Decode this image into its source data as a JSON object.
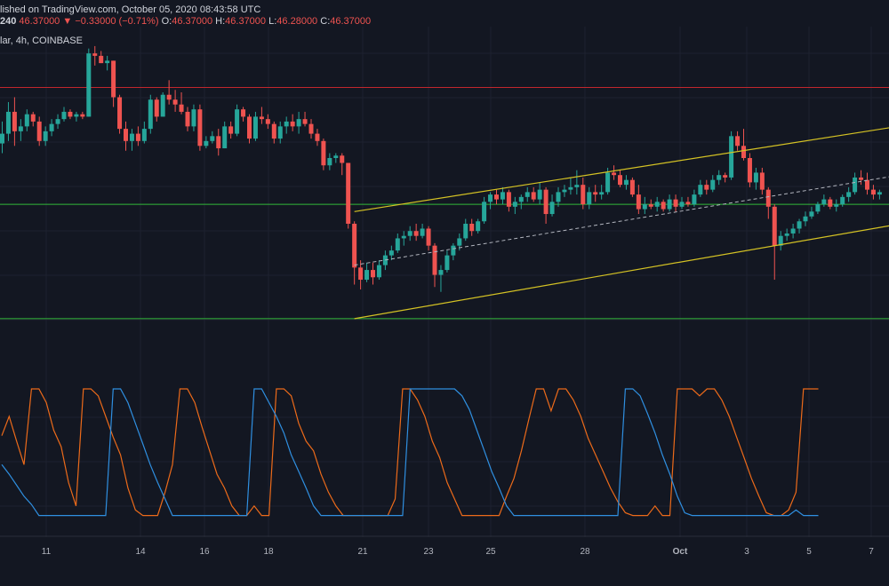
{
  "header": {
    "published": "lished on TradingView.com, October 05, 2020 08:43:58 UTC",
    "interval": "240",
    "price": "46.37000",
    "change": "▼ −0.33000 (−0.71%)",
    "o_label": "O:",
    "o_value": "46.37000",
    "h_label": "H:",
    "h_value": "46.37000",
    "l_label": "L:",
    "l_value": "46.28000",
    "c_label": "C:",
    "c_value": "46.37000",
    "symbol": "lar, 4h, COINBASE"
  },
  "colors": {
    "background": "#131722",
    "grid": "#1e2230",
    "up": "#26a69a",
    "down": "#ef5350",
    "resistance": "#c1272d",
    "support": "#33b83a",
    "channel": "#d4c224",
    "midline": "#b2b5be",
    "osc_orange": "#ec6a1a",
    "osc_blue": "#2f8fe0"
  },
  "chart_data": {
    "type": "candlestick",
    "x_ticks": [
      "11",
      "14",
      "16",
      "18",
      "21",
      "23",
      "25",
      "28",
      "Oct",
      "3",
      "5",
      "7"
    ],
    "price_ylim": [
      41.0,
      54.5
    ],
    "candles": [
      {
        "o": 49.7,
        "h": 50.6,
        "l": 49.3,
        "c": 50.1
      },
      {
        "o": 50.1,
        "h": 51.4,
        "l": 49.8,
        "c": 51.0
      },
      {
        "o": 51.0,
        "h": 51.6,
        "l": 49.6,
        "c": 50.2
      },
      {
        "o": 50.2,
        "h": 50.7,
        "l": 49.8,
        "c": 50.4
      },
      {
        "o": 50.4,
        "h": 51.1,
        "l": 50.2,
        "c": 50.9
      },
      {
        "o": 50.9,
        "h": 51.0,
        "l": 50.4,
        "c": 50.6
      },
      {
        "o": 50.6,
        "h": 50.8,
        "l": 49.6,
        "c": 49.8
      },
      {
        "o": 49.8,
        "h": 50.4,
        "l": 49.6,
        "c": 50.2
      },
      {
        "o": 50.2,
        "h": 50.7,
        "l": 50.0,
        "c": 50.5
      },
      {
        "o": 50.5,
        "h": 50.9,
        "l": 50.3,
        "c": 50.7
      },
      {
        "o": 50.7,
        "h": 51.2,
        "l": 50.6,
        "c": 51.0
      },
      {
        "o": 51.0,
        "h": 51.1,
        "l": 50.7,
        "c": 50.8
      },
      {
        "o": 50.8,
        "h": 51.0,
        "l": 50.6,
        "c": 50.9
      },
      {
        "o": 50.9,
        "h": 51.0,
        "l": 50.7,
        "c": 50.8
      },
      {
        "o": 50.8,
        "h": 53.6,
        "l": 50.8,
        "c": 53.4
      },
      {
        "o": 53.4,
        "h": 53.7,
        "l": 52.9,
        "c": 53.3
      },
      {
        "o": 53.3,
        "h": 53.5,
        "l": 53.0,
        "c": 53.0
      },
      {
        "o": 53.0,
        "h": 53.3,
        "l": 52.7,
        "c": 53.1
      },
      {
        "o": 53.1,
        "h": 53.1,
        "l": 51.2,
        "c": 51.6
      },
      {
        "o": 51.6,
        "h": 51.7,
        "l": 50.1,
        "c": 50.3
      },
      {
        "o": 50.3,
        "h": 50.6,
        "l": 49.4,
        "c": 49.8
      },
      {
        "o": 49.8,
        "h": 50.3,
        "l": 49.4,
        "c": 50.1
      },
      {
        "o": 50.1,
        "h": 50.4,
        "l": 49.6,
        "c": 49.8
      },
      {
        "o": 49.8,
        "h": 50.6,
        "l": 49.7,
        "c": 50.3
      },
      {
        "o": 50.3,
        "h": 51.7,
        "l": 50.1,
        "c": 51.5
      },
      {
        "o": 51.5,
        "h": 51.6,
        "l": 50.6,
        "c": 50.8
      },
      {
        "o": 50.8,
        "h": 51.8,
        "l": 50.8,
        "c": 51.7
      },
      {
        "o": 51.7,
        "h": 52.3,
        "l": 51.3,
        "c": 51.5
      },
      {
        "o": 51.5,
        "h": 51.9,
        "l": 51.0,
        "c": 51.3
      },
      {
        "o": 51.3,
        "h": 51.8,
        "l": 50.9,
        "c": 51.0
      },
      {
        "o": 51.0,
        "h": 51.2,
        "l": 50.2,
        "c": 50.4
      },
      {
        "o": 50.4,
        "h": 51.3,
        "l": 50.2,
        "c": 51.1
      },
      {
        "o": 51.1,
        "h": 51.3,
        "l": 49.4,
        "c": 49.6
      },
      {
        "o": 49.6,
        "h": 50.0,
        "l": 49.5,
        "c": 49.8
      },
      {
        "o": 49.8,
        "h": 50.2,
        "l": 49.7,
        "c": 50.0
      },
      {
        "o": 50.0,
        "h": 50.3,
        "l": 49.2,
        "c": 49.5
      },
      {
        "o": 49.5,
        "h": 50.6,
        "l": 49.5,
        "c": 50.4
      },
      {
        "o": 50.4,
        "h": 50.6,
        "l": 49.9,
        "c": 50.1
      },
      {
        "o": 50.1,
        "h": 51.3,
        "l": 50.0,
        "c": 51.1
      },
      {
        "o": 51.1,
        "h": 51.2,
        "l": 50.6,
        "c": 50.8
      },
      {
        "o": 50.8,
        "h": 50.9,
        "l": 49.7,
        "c": 49.9
      },
      {
        "o": 49.9,
        "h": 51.0,
        "l": 49.8,
        "c": 50.8
      },
      {
        "o": 50.8,
        "h": 51.2,
        "l": 50.5,
        "c": 50.7
      },
      {
        "o": 50.7,
        "h": 50.9,
        "l": 50.3,
        "c": 50.5
      },
      {
        "o": 50.5,
        "h": 50.6,
        "l": 49.7,
        "c": 49.9
      },
      {
        "o": 49.9,
        "h": 50.6,
        "l": 49.7,
        "c": 50.4
      },
      {
        "o": 50.4,
        "h": 50.8,
        "l": 50.1,
        "c": 50.6
      },
      {
        "o": 50.6,
        "h": 50.9,
        "l": 50.2,
        "c": 50.4
      },
      {
        "o": 50.4,
        "h": 51.0,
        "l": 50.1,
        "c": 50.7
      },
      {
        "o": 50.7,
        "h": 51.0,
        "l": 50.4,
        "c": 50.5
      },
      {
        "o": 50.5,
        "h": 50.7,
        "l": 49.9,
        "c": 50.1
      },
      {
        "o": 50.1,
        "h": 50.3,
        "l": 49.6,
        "c": 49.8
      },
      {
        "o": 49.8,
        "h": 49.9,
        "l": 48.6,
        "c": 48.8
      },
      {
        "o": 48.8,
        "h": 49.3,
        "l": 48.6,
        "c": 49.1
      },
      {
        "o": 49.1,
        "h": 49.3,
        "l": 48.9,
        "c": 49.2
      },
      {
        "o": 49.2,
        "h": 49.3,
        "l": 48.4,
        "c": 48.9
      },
      {
        "o": 48.9,
        "h": 48.9,
        "l": 46.2,
        "c": 46.4
      },
      {
        "o": 46.4,
        "h": 46.5,
        "l": 43.9,
        "c": 44.6
      },
      {
        "o": 44.6,
        "h": 44.9,
        "l": 43.7,
        "c": 44.1
      },
      {
        "o": 44.1,
        "h": 44.8,
        "l": 44.0,
        "c": 44.5
      },
      {
        "o": 44.5,
        "h": 44.8,
        "l": 43.9,
        "c": 44.2
      },
      {
        "o": 44.2,
        "h": 44.9,
        "l": 44.1,
        "c": 44.7
      },
      {
        "o": 44.7,
        "h": 45.3,
        "l": 44.5,
        "c": 45.1
      },
      {
        "o": 45.1,
        "h": 45.5,
        "l": 44.9,
        "c": 45.3
      },
      {
        "o": 45.3,
        "h": 46.0,
        "l": 45.2,
        "c": 45.8
      },
      {
        "o": 45.8,
        "h": 46.1,
        "l": 45.5,
        "c": 45.9
      },
      {
        "o": 45.9,
        "h": 46.3,
        "l": 45.7,
        "c": 46.1
      },
      {
        "o": 46.1,
        "h": 46.4,
        "l": 45.7,
        "c": 45.9
      },
      {
        "o": 45.9,
        "h": 46.4,
        "l": 45.8,
        "c": 46.2
      },
      {
        "o": 46.2,
        "h": 46.3,
        "l": 45.3,
        "c": 45.5
      },
      {
        "o": 45.5,
        "h": 45.6,
        "l": 43.8,
        "c": 44.3
      },
      {
        "o": 44.3,
        "h": 44.7,
        "l": 43.6,
        "c": 44.5
      },
      {
        "o": 44.5,
        "h": 45.3,
        "l": 44.4,
        "c": 45.1
      },
      {
        "o": 45.1,
        "h": 45.6,
        "l": 44.9,
        "c": 45.5
      },
      {
        "o": 45.5,
        "h": 46.0,
        "l": 45.3,
        "c": 45.8
      },
      {
        "o": 45.8,
        "h": 46.6,
        "l": 45.7,
        "c": 46.4
      },
      {
        "o": 46.4,
        "h": 46.6,
        "l": 45.9,
        "c": 46.1
      },
      {
        "o": 46.1,
        "h": 46.6,
        "l": 46.0,
        "c": 46.5
      },
      {
        "o": 46.5,
        "h": 47.5,
        "l": 46.4,
        "c": 47.3
      },
      {
        "o": 47.3,
        "h": 47.7,
        "l": 47.0,
        "c": 47.6
      },
      {
        "o": 47.6,
        "h": 47.8,
        "l": 47.2,
        "c": 47.4
      },
      {
        "o": 47.4,
        "h": 47.9,
        "l": 47.2,
        "c": 47.7
      },
      {
        "o": 47.7,
        "h": 47.8,
        "l": 46.9,
        "c": 47.1
      },
      {
        "o": 47.1,
        "h": 47.5,
        "l": 46.8,
        "c": 47.3
      },
      {
        "o": 47.3,
        "h": 47.6,
        "l": 47.0,
        "c": 47.5
      },
      {
        "o": 47.5,
        "h": 47.9,
        "l": 47.3,
        "c": 47.7
      },
      {
        "o": 47.7,
        "h": 47.9,
        "l": 47.3,
        "c": 47.4
      },
      {
        "o": 47.4,
        "h": 48.1,
        "l": 47.2,
        "c": 47.8
      },
      {
        "o": 47.8,
        "h": 47.9,
        "l": 46.4,
        "c": 46.8
      },
      {
        "o": 46.8,
        "h": 47.6,
        "l": 46.7,
        "c": 47.3
      },
      {
        "o": 47.3,
        "h": 47.9,
        "l": 47.1,
        "c": 47.7
      },
      {
        "o": 47.7,
        "h": 48.0,
        "l": 47.5,
        "c": 47.8
      },
      {
        "o": 47.8,
        "h": 48.3,
        "l": 47.6,
        "c": 47.9
      },
      {
        "o": 47.9,
        "h": 48.6,
        "l": 47.6,
        "c": 48.0
      },
      {
        "o": 48.0,
        "h": 48.3,
        "l": 47.0,
        "c": 47.2
      },
      {
        "o": 47.2,
        "h": 47.9,
        "l": 47.0,
        "c": 47.7
      },
      {
        "o": 47.7,
        "h": 48.0,
        "l": 47.3,
        "c": 47.6
      },
      {
        "o": 47.6,
        "h": 48.0,
        "l": 47.4,
        "c": 47.7
      },
      {
        "o": 47.7,
        "h": 48.7,
        "l": 47.6,
        "c": 48.5
      },
      {
        "o": 48.5,
        "h": 48.8,
        "l": 48.2,
        "c": 48.4
      },
      {
        "o": 48.4,
        "h": 48.6,
        "l": 47.9,
        "c": 48.0
      },
      {
        "o": 48.0,
        "h": 48.4,
        "l": 47.8,
        "c": 48.2
      },
      {
        "o": 48.2,
        "h": 48.3,
        "l": 47.5,
        "c": 47.6
      },
      {
        "o": 47.6,
        "h": 48.0,
        "l": 46.8,
        "c": 47.0
      },
      {
        "o": 47.0,
        "h": 47.5,
        "l": 46.8,
        "c": 47.2
      },
      {
        "o": 47.2,
        "h": 47.4,
        "l": 47.0,
        "c": 47.1
      },
      {
        "o": 47.1,
        "h": 47.5,
        "l": 46.9,
        "c": 47.3
      },
      {
        "o": 47.3,
        "h": 47.4,
        "l": 46.9,
        "c": 47.0
      },
      {
        "o": 47.0,
        "h": 47.6,
        "l": 46.9,
        "c": 47.4
      },
      {
        "o": 47.4,
        "h": 47.6,
        "l": 46.9,
        "c": 47.1
      },
      {
        "o": 47.1,
        "h": 47.5,
        "l": 47.0,
        "c": 47.3
      },
      {
        "o": 47.3,
        "h": 47.5,
        "l": 47.1,
        "c": 47.2
      },
      {
        "o": 47.2,
        "h": 47.8,
        "l": 47.1,
        "c": 47.6
      },
      {
        "o": 47.6,
        "h": 48.2,
        "l": 47.5,
        "c": 48.0
      },
      {
        "o": 48.0,
        "h": 48.2,
        "l": 47.6,
        "c": 47.8
      },
      {
        "o": 47.8,
        "h": 48.4,
        "l": 47.7,
        "c": 48.2
      },
      {
        "o": 48.2,
        "h": 48.6,
        "l": 48.0,
        "c": 48.4
      },
      {
        "o": 48.4,
        "h": 48.5,
        "l": 48.1,
        "c": 48.3
      },
      {
        "o": 48.3,
        "h": 50.2,
        "l": 48.2,
        "c": 50.0
      },
      {
        "o": 50.0,
        "h": 50.2,
        "l": 49.4,
        "c": 49.6
      },
      {
        "o": 49.6,
        "h": 50.3,
        "l": 49.0,
        "c": 49.1
      },
      {
        "o": 49.1,
        "h": 49.3,
        "l": 47.9,
        "c": 48.1
      },
      {
        "o": 48.1,
        "h": 48.7,
        "l": 47.8,
        "c": 48.5
      },
      {
        "o": 48.5,
        "h": 48.7,
        "l": 47.6,
        "c": 47.8
      },
      {
        "o": 47.8,
        "h": 47.9,
        "l": 46.6,
        "c": 47.1
      },
      {
        "o": 47.1,
        "h": 47.2,
        "l": 44.1,
        "c": 45.5
      },
      {
        "o": 45.5,
        "h": 46.1,
        "l": 45.3,
        "c": 45.9
      },
      {
        "o": 45.9,
        "h": 46.2,
        "l": 45.7,
        "c": 46.0
      },
      {
        "o": 46.0,
        "h": 46.4,
        "l": 45.8,
        "c": 46.2
      },
      {
        "o": 46.2,
        "h": 46.6,
        "l": 46.0,
        "c": 46.5
      },
      {
        "o": 46.5,
        "h": 46.9,
        "l": 46.3,
        "c": 46.7
      },
      {
        "o": 46.7,
        "h": 47.1,
        "l": 46.6,
        "c": 46.9
      },
      {
        "o": 46.9,
        "h": 47.3,
        "l": 46.8,
        "c": 47.2
      },
      {
        "o": 47.2,
        "h": 47.6,
        "l": 47.1,
        "c": 47.4
      },
      {
        "o": 47.4,
        "h": 47.5,
        "l": 47.0,
        "c": 47.1
      },
      {
        "o": 47.1,
        "h": 47.4,
        "l": 46.9,
        "c": 47.2
      },
      {
        "o": 47.2,
        "h": 47.6,
        "l": 47.1,
        "c": 47.5
      },
      {
        "o": 47.5,
        "h": 47.9,
        "l": 47.3,
        "c": 47.7
      },
      {
        "o": 47.7,
        "h": 48.5,
        "l": 47.6,
        "c": 48.3
      },
      {
        "o": 48.3,
        "h": 48.6,
        "l": 48.0,
        "c": 48.2
      },
      {
        "o": 48.2,
        "h": 48.5,
        "l": 47.6,
        "c": 47.8
      },
      {
        "o": 47.8,
        "h": 48.0,
        "l": 47.4,
        "c": 47.6
      },
      {
        "o": 47.6,
        "h": 47.8,
        "l": 47.4,
        "c": 47.7
      }
    ],
    "oscillator": {
      "series": [
        {
          "values": [
            66,
            80,
            62,
            45,
            100,
            100,
            90,
            70,
            58,
            32,
            15,
            100,
            100,
            95,
            80,
            65,
            52,
            28,
            12,
            8,
            8,
            8,
            25,
            45,
            100,
            100,
            90,
            72,
            55,
            38,
            28,
            15,
            8,
            8,
            15,
            8,
            8,
            100,
            100,
            95,
            75,
            62,
            55,
            38,
            25,
            15,
            8,
            8,
            8,
            8,
            8,
            8,
            8,
            20,
            100,
            100,
            92,
            80,
            62,
            50,
            32,
            20,
            8,
            8,
            8,
            8,
            8,
            8,
            22,
            35,
            55,
            78,
            100,
            100,
            84,
            100,
            100,
            92,
            80,
            64,
            52,
            40,
            28,
            18,
            10,
            8,
            8,
            8,
            15,
            8,
            8,
            100,
            100,
            100,
            95,
            100,
            100,
            92,
            80,
            65,
            50,
            35,
            22,
            10,
            8,
            8,
            12,
            25,
            100,
            100,
            100
          ]
        },
        {
          "values": [
            45,
            38,
            30,
            22,
            16,
            8,
            8,
            8,
            8,
            8,
            8,
            8,
            8,
            8,
            8,
            100,
            100,
            90,
            75,
            60,
            45,
            32,
            20,
            8,
            8,
            8,
            8,
            8,
            8,
            8,
            8,
            8,
            8,
            8,
            100,
            100,
            90,
            80,
            68,
            52,
            40,
            28,
            15,
            8,
            8,
            8,
            8,
            8,
            8,
            8,
            8,
            8,
            8,
            8,
            8,
            100,
            100,
            100,
            100,
            100,
            100,
            100,
            95,
            85,
            70,
            55,
            40,
            28,
            15,
            8,
            8,
            8,
            8,
            8,
            8,
            8,
            8,
            8,
            8,
            8,
            8,
            8,
            8,
            8,
            100,
            100,
            95,
            82,
            68,
            52,
            38,
            22,
            10,
            8,
            8,
            8,
            8,
            8,
            8,
            8,
            8,
            8,
            8,
            8,
            8,
            8,
            8,
            12,
            8,
            8,
            8
          ]
        }
      ]
    },
    "price_levels": [
      52.0,
      47.2,
      42.5
    ],
    "ascending_channel": {
      "upper": [
        [
          57,
          46.9
        ],
        [
          150,
          50.6
        ]
      ],
      "lower": [
        [
          57,
          42.5
        ],
        [
          150,
          46.6
        ]
      ],
      "mid": [
        [
          57,
          44.7
        ],
        [
          150,
          48.6
        ]
      ]
    }
  }
}
